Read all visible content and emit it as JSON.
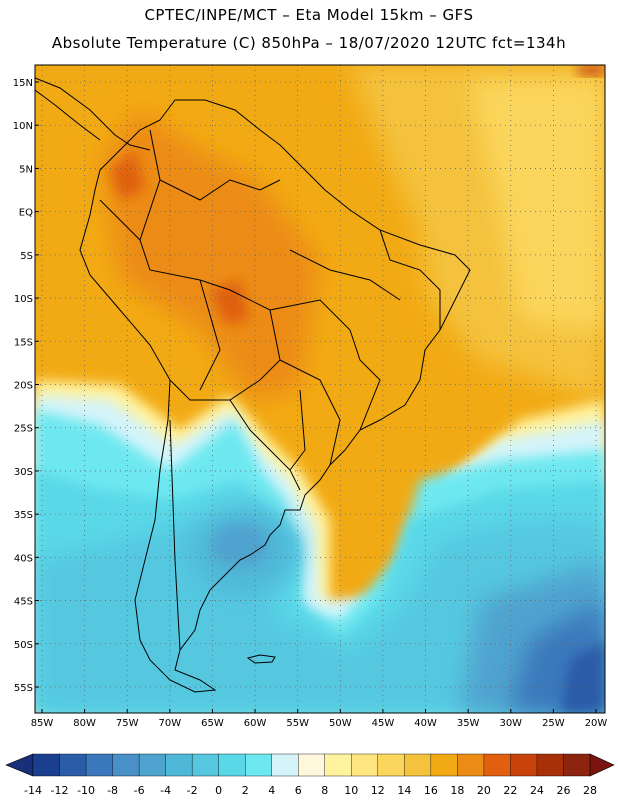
{
  "header": {
    "line1": "CPTEC/INPE/MCT –  Eta Model 15km – GFS",
    "line2": "Absolute Temperature (C) 850hPa – 18/07/2020 12UTC fct=134h"
  },
  "axes": {
    "lat_labels": [
      "15N",
      "10N",
      "5N",
      "EQ",
      "5S",
      "10S",
      "15S",
      "20S",
      "25S",
      "30S",
      "35S",
      "40S",
      "45S",
      "50S",
      "55S"
    ],
    "lat_values": [
      15,
      10,
      5,
      0,
      -5,
      -10,
      -15,
      -20,
      -25,
      -30,
      -35,
      -40,
      -45,
      -50,
      -55
    ],
    "lon_labels": [
      "85W",
      "80W",
      "75W",
      "70W",
      "65W",
      "60W",
      "55W",
      "50W",
      "45W",
      "40W",
      "35W",
      "30W",
      "25W",
      "20W"
    ],
    "lon_values": [
      -85,
      -80,
      -75,
      -70,
      -65,
      -60,
      -55,
      -50,
      -45,
      -40,
      -35,
      -30,
      -25,
      -20
    ]
  },
  "colorbar": {
    "labels": [
      "-14",
      "-12",
      "-10",
      "-8",
      "-6",
      "-4",
      "-2",
      "0",
      "2",
      "4",
      "6",
      "8",
      "10",
      "12",
      "14",
      "16",
      "18",
      "20",
      "22",
      "24",
      "26",
      "28"
    ],
    "colors": [
      "#1b3f8f",
      "#2a5ca8",
      "#3a78bb",
      "#4a90c8",
      "#4fa3cf",
      "#4fb7d8",
      "#55c8e0",
      "#5ad8e8",
      "#6ee8f0",
      "#d4f4fa",
      "#fff8dc",
      "#fff3a0",
      "#ffe680",
      "#fbd65c",
      "#f4c23c",
      "#f2aa14",
      "#ec8c14",
      "#e06010",
      "#c8420c",
      "#a83008",
      "#8c2410"
    ],
    "under_color": "#1a2f7a",
    "over_color": "#7a1410"
  }
}
